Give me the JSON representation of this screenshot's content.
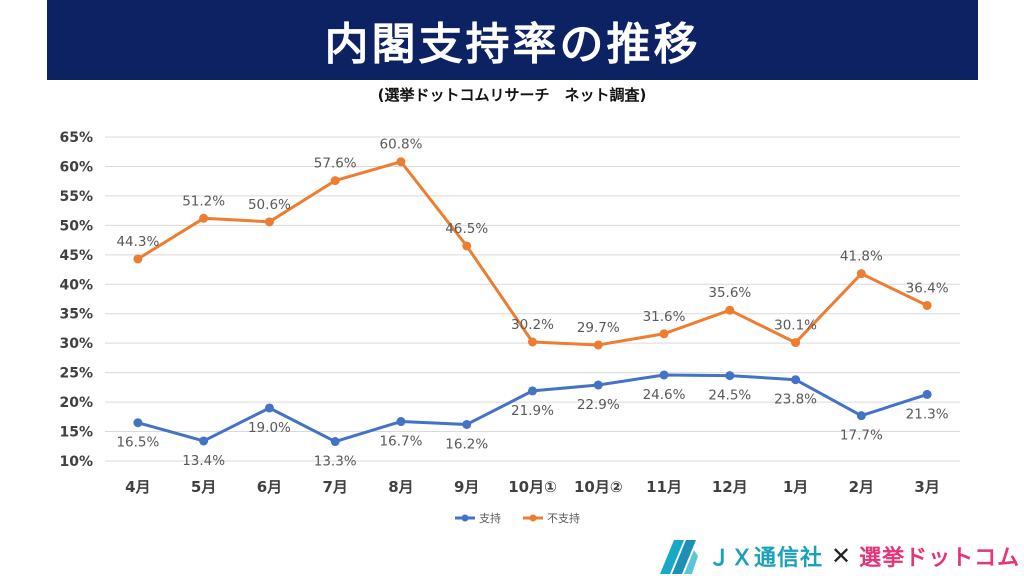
{
  "header": {
    "title": "内閣支持率の推移",
    "subtitle": "(選挙ドットコムリサーチ　ネット調査)"
  },
  "footer": {
    "jx_label": "ＪＸ通信社",
    "cross": "✕",
    "senkyo_label": "選挙ドットコム",
    "jx_color": "#1aa0b8",
    "senkyo_color": "#e6337a"
  },
  "chart_data": {
    "type": "line",
    "title": "",
    "xlabel": "",
    "ylabel": "",
    "categories": [
      "4月",
      "5月",
      "6月",
      "7月",
      "8月",
      "9月",
      "10月①",
      "10月②",
      "11月",
      "12月",
      "1月",
      "2月",
      "3月"
    ],
    "y_ticks": [
      "10%",
      "15%",
      "20%",
      "25%",
      "30%",
      "35%",
      "40%",
      "45%",
      "50%",
      "55%",
      "60%",
      "65%"
    ],
    "ylim": [
      10,
      65
    ],
    "grid": true,
    "legend_position": "bottom",
    "series": [
      {
        "name": "支持",
        "color": "#4472c4",
        "values": [
          16.5,
          13.4,
          19.0,
          13.3,
          16.7,
          16.2,
          21.9,
          22.9,
          24.6,
          24.5,
          23.8,
          17.7,
          21.3
        ],
        "labels": [
          "16.5%",
          "13.4%",
          "19.0%",
          "13.3%",
          "16.7%",
          "16.2%",
          "21.9%",
          "22.9%",
          "24.6%",
          "24.5%",
          "23.8%",
          "17.7%",
          "21.3%"
        ]
      },
      {
        "name": "不支持",
        "color": "#ed7d31",
        "values": [
          44.3,
          51.2,
          50.6,
          57.6,
          60.8,
          46.5,
          30.2,
          29.7,
          31.6,
          35.6,
          30.1,
          41.8,
          36.4
        ],
        "labels": [
          "44.3%",
          "51.2%",
          "50.6%",
          "57.6%",
          "60.8%",
          "46.5%",
          "30.2%",
          "29.7%",
          "31.6%",
          "35.6%",
          "30.1%",
          "41.8%",
          "36.4%"
        ]
      }
    ]
  }
}
